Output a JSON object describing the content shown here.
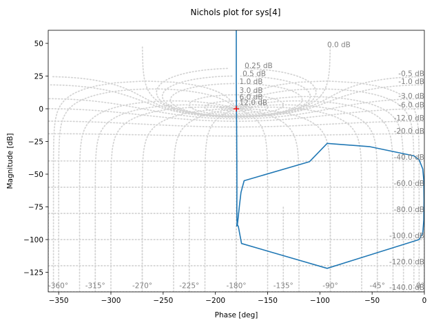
{
  "chart_data": {
    "type": "line",
    "title": "Nichols plot for sys[4]",
    "xlabel": "Phase [deg]",
    "ylabel": "Magnitude [dB]",
    "xlim": [
      -360,
      0
    ],
    "ylim": [
      -140,
      60
    ],
    "xticks": [
      -350,
      -300,
      -250,
      -200,
      -150,
      -100,
      -50,
      0
    ],
    "yticks": [
      50,
      25,
      0,
      -25,
      -50,
      -75,
      -100,
      -125
    ],
    "grid": true,
    "series": [
      {
        "color": "#1f77b4",
        "x": [
          -180,
          -180,
          -179.8,
          -179.6,
          -179.5,
          -179.4,
          -179.4,
          -179.5,
          -179.4,
          -179.0,
          -178.3,
          -177.0,
          -175.5,
          -172.5,
          -110,
          -93,
          -52,
          -10,
          -5,
          -1.5,
          -0.5,
          -0.3,
          -0.5,
          -1.5,
          -5,
          -93,
          -175,
          -178,
          -179.4,
          -179.6
        ],
        "y": [
          60,
          20,
          0,
          -20,
          -40,
          -55,
          -65,
          -75,
          -85,
          -89,
          -84,
          -74,
          -64,
          -55,
          -40.5,
          -26.5,
          -29,
          -36,
          -39,
          -46,
          -55,
          -70,
          -85,
          -95,
          -100,
          -122,
          -103,
          -90,
          -88,
          -90
        ]
      }
    ],
    "critical_point": {
      "x": -180,
      "y": 0,
      "marker": "+",
      "color": "#ff0000"
    },
    "closed_loop_magnitude_labels": [
      "0.0 dB",
      "0.25 dB",
      "0.5 dB",
      "1.0 dB",
      "3.0 dB",
      "6.0 dB",
      "12.0 dB",
      "-0.5 dB",
      "-1.0 dB",
      "-3.0 dB",
      "-6.0 dB",
      "-12.0 dB",
      "-20.0 dB",
      "-40.0 dB",
      "-60.0 dB",
      "-80.0 dB",
      "-100.0 dB",
      "-120.0 dB",
      "-140.0 dB"
    ],
    "closed_loop_phase_labels": [
      "-360°",
      "-315°",
      "-270°",
      "-225°",
      "-180°",
      "-135°",
      "-90°",
      "-45°",
      "0°"
    ]
  }
}
